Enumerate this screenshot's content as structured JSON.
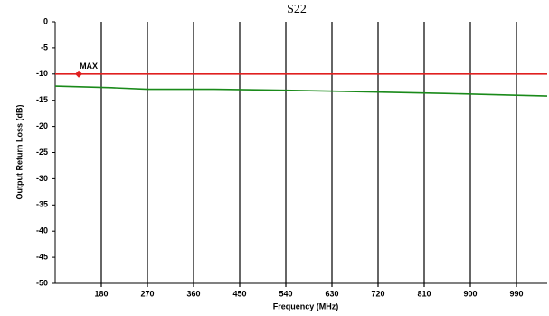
{
  "chart_data": {
    "type": "line",
    "title": "S22",
    "x_label": "Frequency (MHz)",
    "y_label": "Output Return Loss (dB)",
    "x": [
      90,
      200,
      270,
      400,
      540,
      700,
      850,
      1050
    ],
    "series": [
      {
        "name": "MAX",
        "color": "#e02020",
        "values": [
          -10,
          -10,
          -10,
          -10,
          -10,
          -10,
          -10,
          -10
        ]
      },
      {
        "color": "#1a8a1a",
        "values": [
          -12.3,
          -12.6,
          -12.9,
          -12.9,
          -13.1,
          -13.4,
          -13.7,
          -14.2
        ]
      }
    ],
    "marker": {
      "x": 136,
      "y": -10,
      "color": "#e02020"
    },
    "xlim": [
      90,
      1050
    ],
    "xticks": [
      180,
      270,
      360,
      450,
      540,
      630,
      720,
      810,
      900,
      990
    ],
    "ylim": [
      -50,
      0
    ],
    "yticks": [
      0,
      -5,
      -10,
      -15,
      -20,
      -25,
      -30,
      -35,
      -40,
      -45,
      -50
    ],
    "grid": "x"
  }
}
